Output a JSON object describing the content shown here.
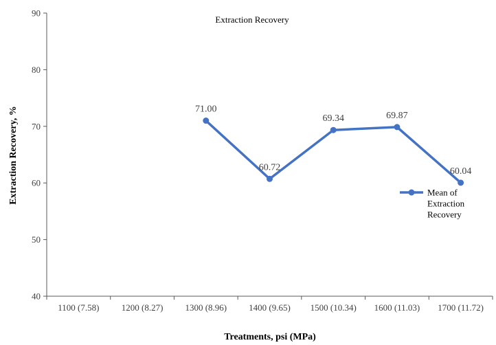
{
  "chart_data": {
    "type": "line",
    "title": "Extraction Recovery",
    "xlabel": "Treatments, psi (MPa)",
    "ylabel": "Extraction Recovery, %",
    "categories": [
      "1100 (7.58)",
      "1200 (8.27)",
      "1300 (8.96)",
      "1400 (9.65)",
      "1500 (10.34)",
      "1600 (11.03)",
      "1700  (11.72)"
    ],
    "series": [
      {
        "name": "Mean of Extraction Recovery",
        "legend_lines": [
          "Mean of",
          "Extraction",
          "Recovery"
        ],
        "values": [
          null,
          null,
          71.0,
          60.72,
          69.34,
          69.87,
          60.04
        ],
        "labels": [
          "",
          "",
          "71.00",
          "60.72",
          "69.34",
          "69.87",
          "60.04"
        ],
        "color": "#4472C4"
      }
    ],
    "ylim": [
      40,
      90
    ],
    "yticks": [
      40,
      50,
      60,
      70,
      80,
      90
    ],
    "grid": false,
    "legend_position": "right"
  }
}
